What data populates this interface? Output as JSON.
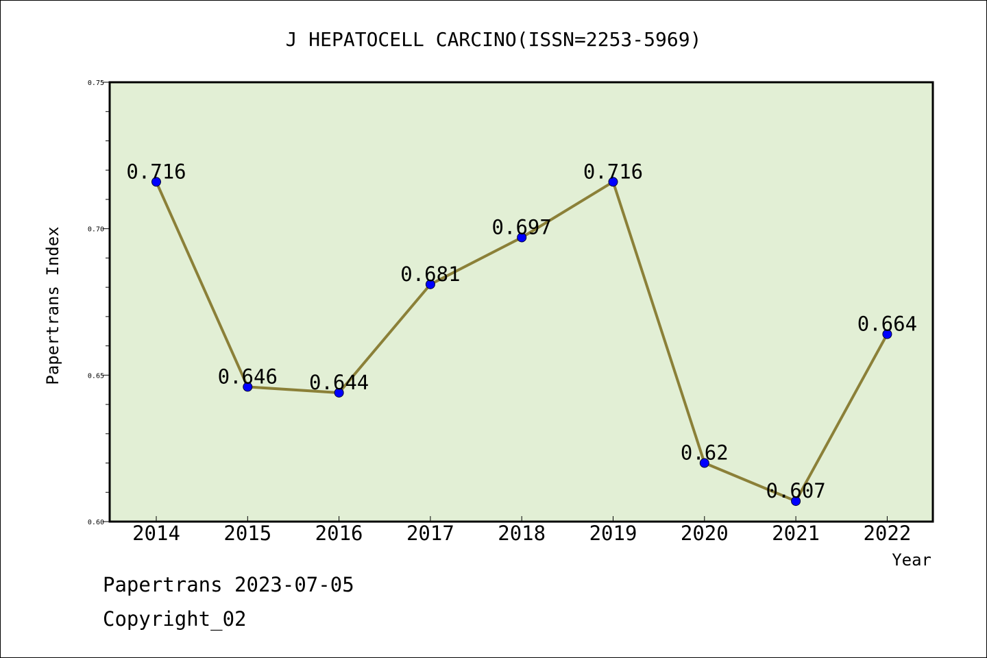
{
  "chart_data": {
    "type": "line",
    "title": "J HEPATOCELL CARCINO(ISSN=2253-5969)",
    "xlabel": "Year",
    "ylabel": "Papertrans Index",
    "categories": [
      "2014",
      "2015",
      "2016",
      "2017",
      "2018",
      "2019",
      "2020",
      "2021",
      "2022"
    ],
    "values": [
      0.716,
      0.646,
      0.644,
      0.681,
      0.697,
      0.716,
      0.62,
      0.607,
      0.664
    ],
    "data_labels": [
      "0.716",
      "0.646",
      "0.644",
      "0.681",
      "0.697",
      "0.716",
      "0.62",
      "0.607",
      "0.664"
    ],
    "ylim": [
      0.6,
      0.75
    ],
    "yticks": [
      0.6,
      0.65,
      0.7,
      0.75
    ],
    "ytick_labels": [
      "0.60",
      "0.65",
      "0.70",
      "0.75"
    ],
    "grid": false,
    "colors": {
      "plot_background": "#e2efd5",
      "line": "#8b8038",
      "marker": "#0000ff"
    }
  },
  "footer": {
    "source": "Papertrans 2023-07-05",
    "copyright": "Copyright_02"
  }
}
